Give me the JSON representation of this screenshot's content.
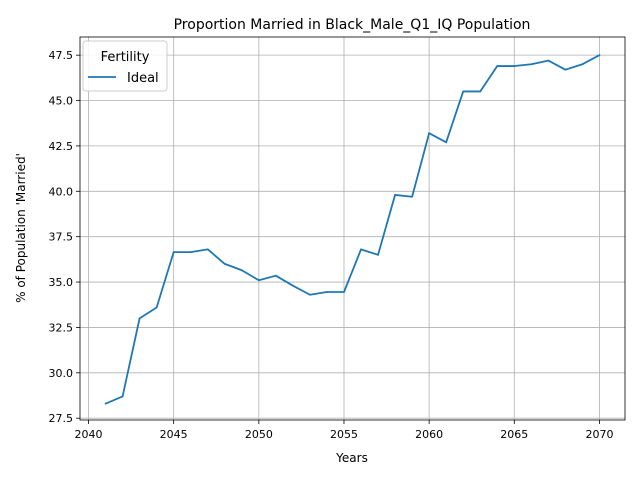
{
  "chart_data": {
    "type": "line",
    "title": "Proportion Married in Black_Male_Q1_IQ Population",
    "xlabel": "Years",
    "ylabel": "% of Population 'Married'",
    "xlim": [
      2039.5,
      2071.5
    ],
    "ylim": [
      27.4,
      48.5
    ],
    "xticks": [
      2040,
      2045,
      2050,
      2055,
      2060,
      2065,
      2070
    ],
    "yticks": [
      27.5,
      30.0,
      32.5,
      35.0,
      37.5,
      40.0,
      42.5,
      45.0,
      47.5
    ],
    "grid": true,
    "legend": {
      "title": "Fertility",
      "placement": "top-left"
    },
    "series": [
      {
        "name": "Ideal",
        "color": "#1f77b4",
        "x": [
          2041,
          2042,
          2043,
          2044,
          2045,
          2046,
          2047,
          2048,
          2049,
          2050,
          2051,
          2052,
          2053,
          2054,
          2055,
          2056,
          2057,
          2058,
          2059,
          2060,
          2061,
          2062,
          2063,
          2064,
          2065,
          2066,
          2067,
          2068,
          2069,
          2070
        ],
        "y": [
          28.3,
          28.7,
          33.0,
          33.6,
          36.65,
          36.65,
          36.8,
          36.0,
          35.65,
          35.1,
          35.35,
          34.8,
          34.3,
          34.45,
          34.45,
          36.8,
          36.5,
          39.8,
          39.7,
          43.2,
          42.7,
          45.5,
          45.5,
          46.9,
          46.9,
          47.0,
          47.2,
          46.7,
          47.0,
          47.5
        ]
      }
    ]
  }
}
